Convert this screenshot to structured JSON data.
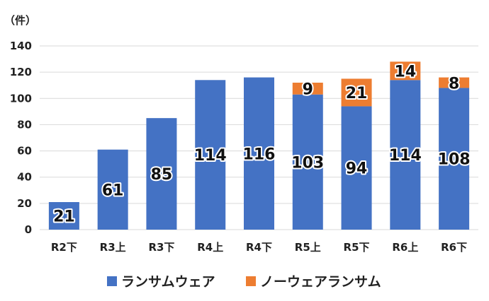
{
  "colors": {
    "ransomware": "#4472C4",
    "noware": "#ED7D31",
    "grid": "#d9d9d9"
  },
  "chart_data": {
    "type": "bar",
    "stacked": true,
    "unit": "（件）",
    "categories": [
      "R2下",
      "R3上",
      "R3下",
      "R4上",
      "R4下",
      "R5上",
      "R5下",
      "R6上",
      "R6下"
    ],
    "series": [
      {
        "name": "ランサムウェア",
        "values": [
          21,
          61,
          85,
          114,
          116,
          103,
          94,
          114,
          108
        ]
      },
      {
        "name": "ノーウェアランサム",
        "values": [
          null,
          null,
          null,
          null,
          null,
          9,
          21,
          14,
          8
        ]
      }
    ],
    "ylim": [
      0,
      140
    ],
    "yticks": [
      0,
      20,
      40,
      60,
      80,
      100,
      120,
      140
    ],
    "grid": true,
    "legend": "bottom"
  }
}
